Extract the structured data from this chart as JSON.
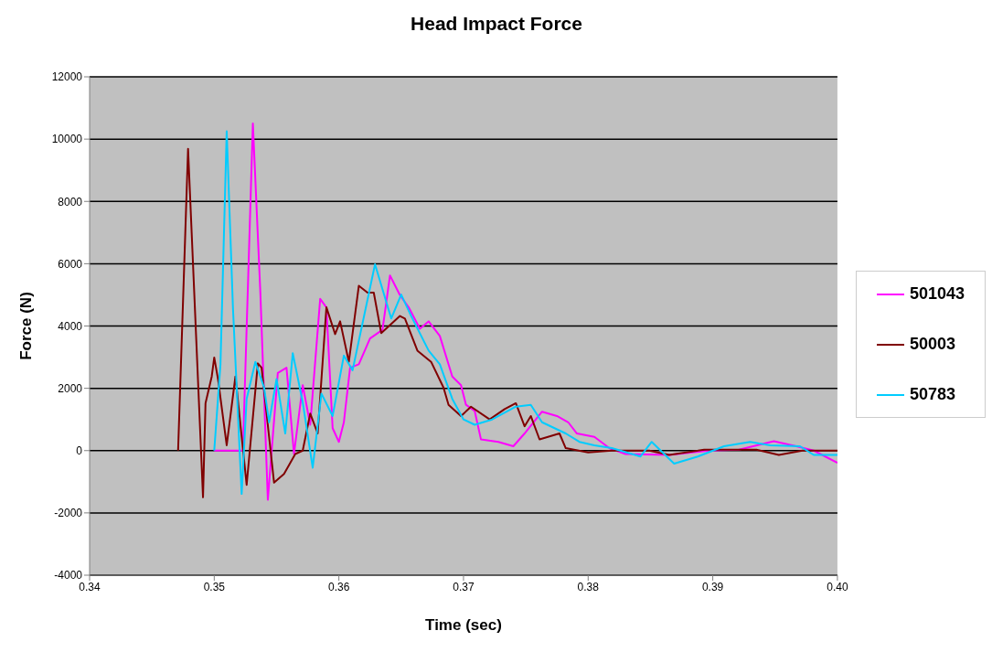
{
  "chart_data": {
    "type": "line",
    "title": "Head Impact Force",
    "xlabel": "Time (sec)",
    "ylabel": "Force (N)",
    "xlim": [
      0.34,
      0.4
    ],
    "xticks": [
      0.34,
      0.35,
      0.36,
      0.37,
      0.38,
      0.39,
      {
        "value": 0.4,
        "label": "0.40"
      }
    ],
    "ylim": [
      -4000,
      12000
    ],
    "yticks": [
      -4000,
      -2000,
      0,
      2000,
      4000,
      6000,
      8000,
      10000,
      12000
    ],
    "grid": "y",
    "legend": "right",
    "marker": "none",
    "line_style": "solid",
    "series": [
      {
        "name": "501043",
        "color": "#ff00ff",
        "x": [
          0.35,
          0.3523,
          0.3531,
          0.3537,
          0.3543,
          0.3551,
          0.3558,
          0.3564,
          0.3571,
          0.3577,
          0.3585,
          0.359,
          0.3595,
          0.36,
          0.3604,
          0.3609,
          0.3616,
          0.3625,
          0.3635,
          0.3641,
          0.3649,
          0.3656,
          0.3665,
          0.3672,
          0.3681,
          0.3691,
          0.3698,
          0.3702,
          0.3709,
          0.3714,
          0.3728,
          0.374,
          0.3749,
          0.3763,
          0.3775,
          0.3784,
          0.3791,
          0.3805,
          0.3817,
          0.383,
          0.3865,
          0.3897,
          0.3921,
          0.3949,
          0.3967,
          0.3981,
          0.4
        ],
        "values": [
          0,
          0,
          10500,
          5070,
          -1580,
          2490,
          2660,
          -110,
          2100,
          830,
          4870,
          4600,
          720,
          280,
          910,
          2660,
          2770,
          3600,
          3880,
          5620,
          4990,
          4600,
          3910,
          4150,
          3680,
          2380,
          2100,
          1470,
          1270,
          360,
          280,
          140,
          550,
          1250,
          1110,
          910,
          550,
          440,
          80,
          -110,
          -140,
          0,
          30,
          300,
          140,
          0,
          -390
        ]
      },
      {
        "name": "50003",
        "color": "#800000",
        "x": [
          0.3471,
          0.3479,
          0.3491,
          0.3493,
          0.3498,
          0.35,
          0.3503,
          0.351,
          0.3517,
          0.3526,
          0.3535,
          0.3538,
          0.3548,
          0.3556,
          0.3565,
          0.3571,
          0.3577,
          0.3583,
          0.359,
          0.3597,
          0.3601,
          0.3608,
          0.3616,
          0.3623,
          0.3628,
          0.3634,
          0.3649,
          0.3653,
          0.3663,
          0.3674,
          0.3684,
          0.3688,
          0.3698,
          0.3706,
          0.3721,
          0.3733,
          0.3742,
          0.3749,
          0.3754,
          0.3761,
          0.3777,
          0.3782,
          0.38,
          0.3819,
          0.3849,
          0.3865,
          0.3893,
          0.3911,
          0.3935,
          0.3953,
          0.3972,
          0.4
        ],
        "values": [
          0,
          9690,
          -1500,
          1520,
          2380,
          2990,
          2300,
          170,
          2380,
          -1100,
          2800,
          2660,
          -1030,
          -750,
          -110,
          0,
          1190,
          550,
          4600,
          3740,
          4150,
          2850,
          5290,
          5070,
          5070,
          3770,
          4320,
          4240,
          3210,
          2850,
          2020,
          1470,
          1110,
          1410,
          1000,
          1330,
          1520,
          780,
          1110,
          360,
          550,
          80,
          -60,
          0,
          0,
          -140,
          30,
          30,
          30,
          -140,
          0,
          0
        ]
      },
      {
        "name": "50783",
        "color": "#00ccff",
        "x": [
          0.35,
          0.3505,
          0.351,
          0.3515,
          0.3522,
          0.3526,
          0.3533,
          0.354,
          0.3544,
          0.355,
          0.3557,
          0.3563,
          0.3571,
          0.3579,
          0.3586,
          0.3595,
          0.3604,
          0.3611,
          0.3629,
          0.3642,
          0.365,
          0.3658,
          0.3672,
          0.3681,
          0.3691,
          0.37,
          0.3709,
          0.3723,
          0.3742,
          0.3754,
          0.3763,
          0.3782,
          0.3793,
          0.3805,
          0.3819,
          0.3842,
          0.3851,
          0.3869,
          0.3888,
          0.3909,
          0.393,
          0.3946,
          0.397,
          0.3981,
          0.4
        ],
        "values": [
          0,
          2770,
          10250,
          4600,
          -1390,
          1660,
          2850,
          2020,
          910,
          2300,
          550,
          3130,
          1550,
          -550,
          1830,
          1110,
          3050,
          2580,
          5980,
          4240,
          5010,
          4320,
          3210,
          2770,
          1660,
          1000,
          830,
          1000,
          1410,
          1470,
          910,
          550,
          280,
          170,
          80,
          -190,
          280,
          -420,
          -190,
          140,
          280,
          170,
          140,
          -140,
          -140
        ]
      }
    ]
  }
}
